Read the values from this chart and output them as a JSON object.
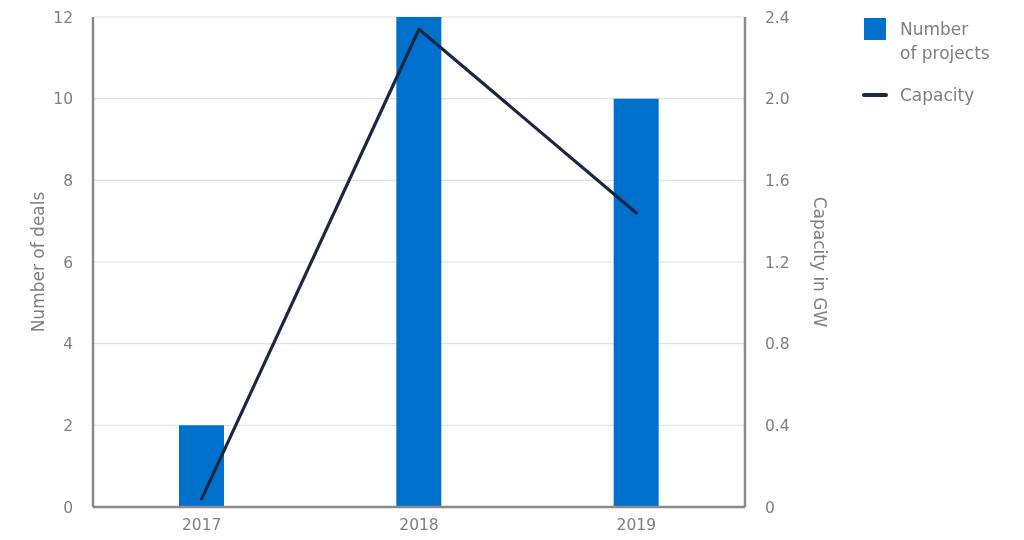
{
  "chart_data": {
    "type": "bar",
    "categories": [
      "2017",
      "2018",
      "2019"
    ],
    "ylabel": "Number of deals",
    "y2label": "Capacity in GW",
    "series": [
      {
        "name": "Number of projects",
        "color": "#0070cd",
        "values": [
          2,
          12,
          10
        ]
      },
      {
        "name": "Capacity",
        "type": "line",
        "axis": "y2",
        "color": "#1b2742",
        "values": [
          0.04,
          2.34,
          1.44
        ]
      }
    ],
    "ylim": [
      0,
      12
    ],
    "yticks": [
      0,
      2,
      4,
      6,
      8,
      10,
      12
    ],
    "y2lim": [
      0,
      2.4
    ],
    "y2ticks": [
      0,
      0.4,
      0.8,
      1.2,
      1.6,
      {
        "value": 2,
        "label": "2.0"
      },
      2.4
    ],
    "grid": "y",
    "legend": "top right",
    "marker": "none"
  }
}
